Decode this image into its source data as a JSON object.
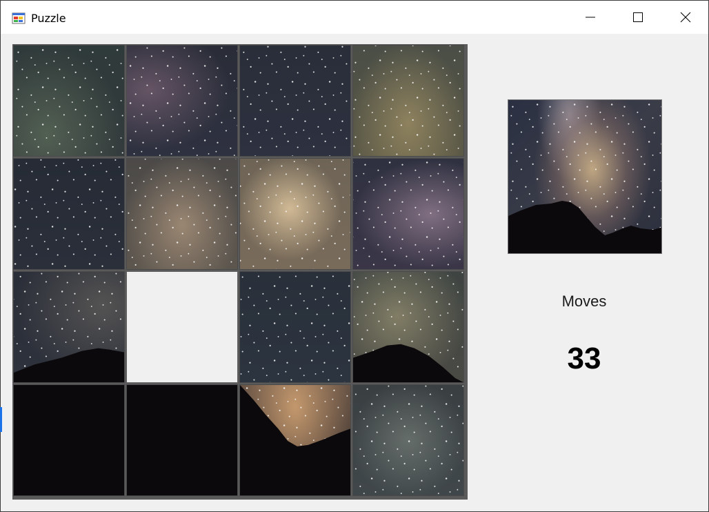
{
  "window": {
    "title": "Puzzle",
    "icon": "app-window-icon",
    "controls": [
      "minimize-icon",
      "maximize-icon",
      "close-icon"
    ]
  },
  "board": {
    "rows": 4,
    "cols": 4,
    "empty_tile": {
      "row": 2,
      "col": 1
    }
  },
  "preview": {
    "icon": "solved-image-preview"
  },
  "moves": {
    "label": "Moves",
    "value": "33"
  },
  "colors": {
    "window_bg": "#f0f0f0",
    "titlebar_bg": "#ffffff",
    "tile_border": "#4a4a4a",
    "sky_dark": "#2d3038",
    "milky_way": "#d6b88c",
    "mountain": "#0b090b"
  }
}
